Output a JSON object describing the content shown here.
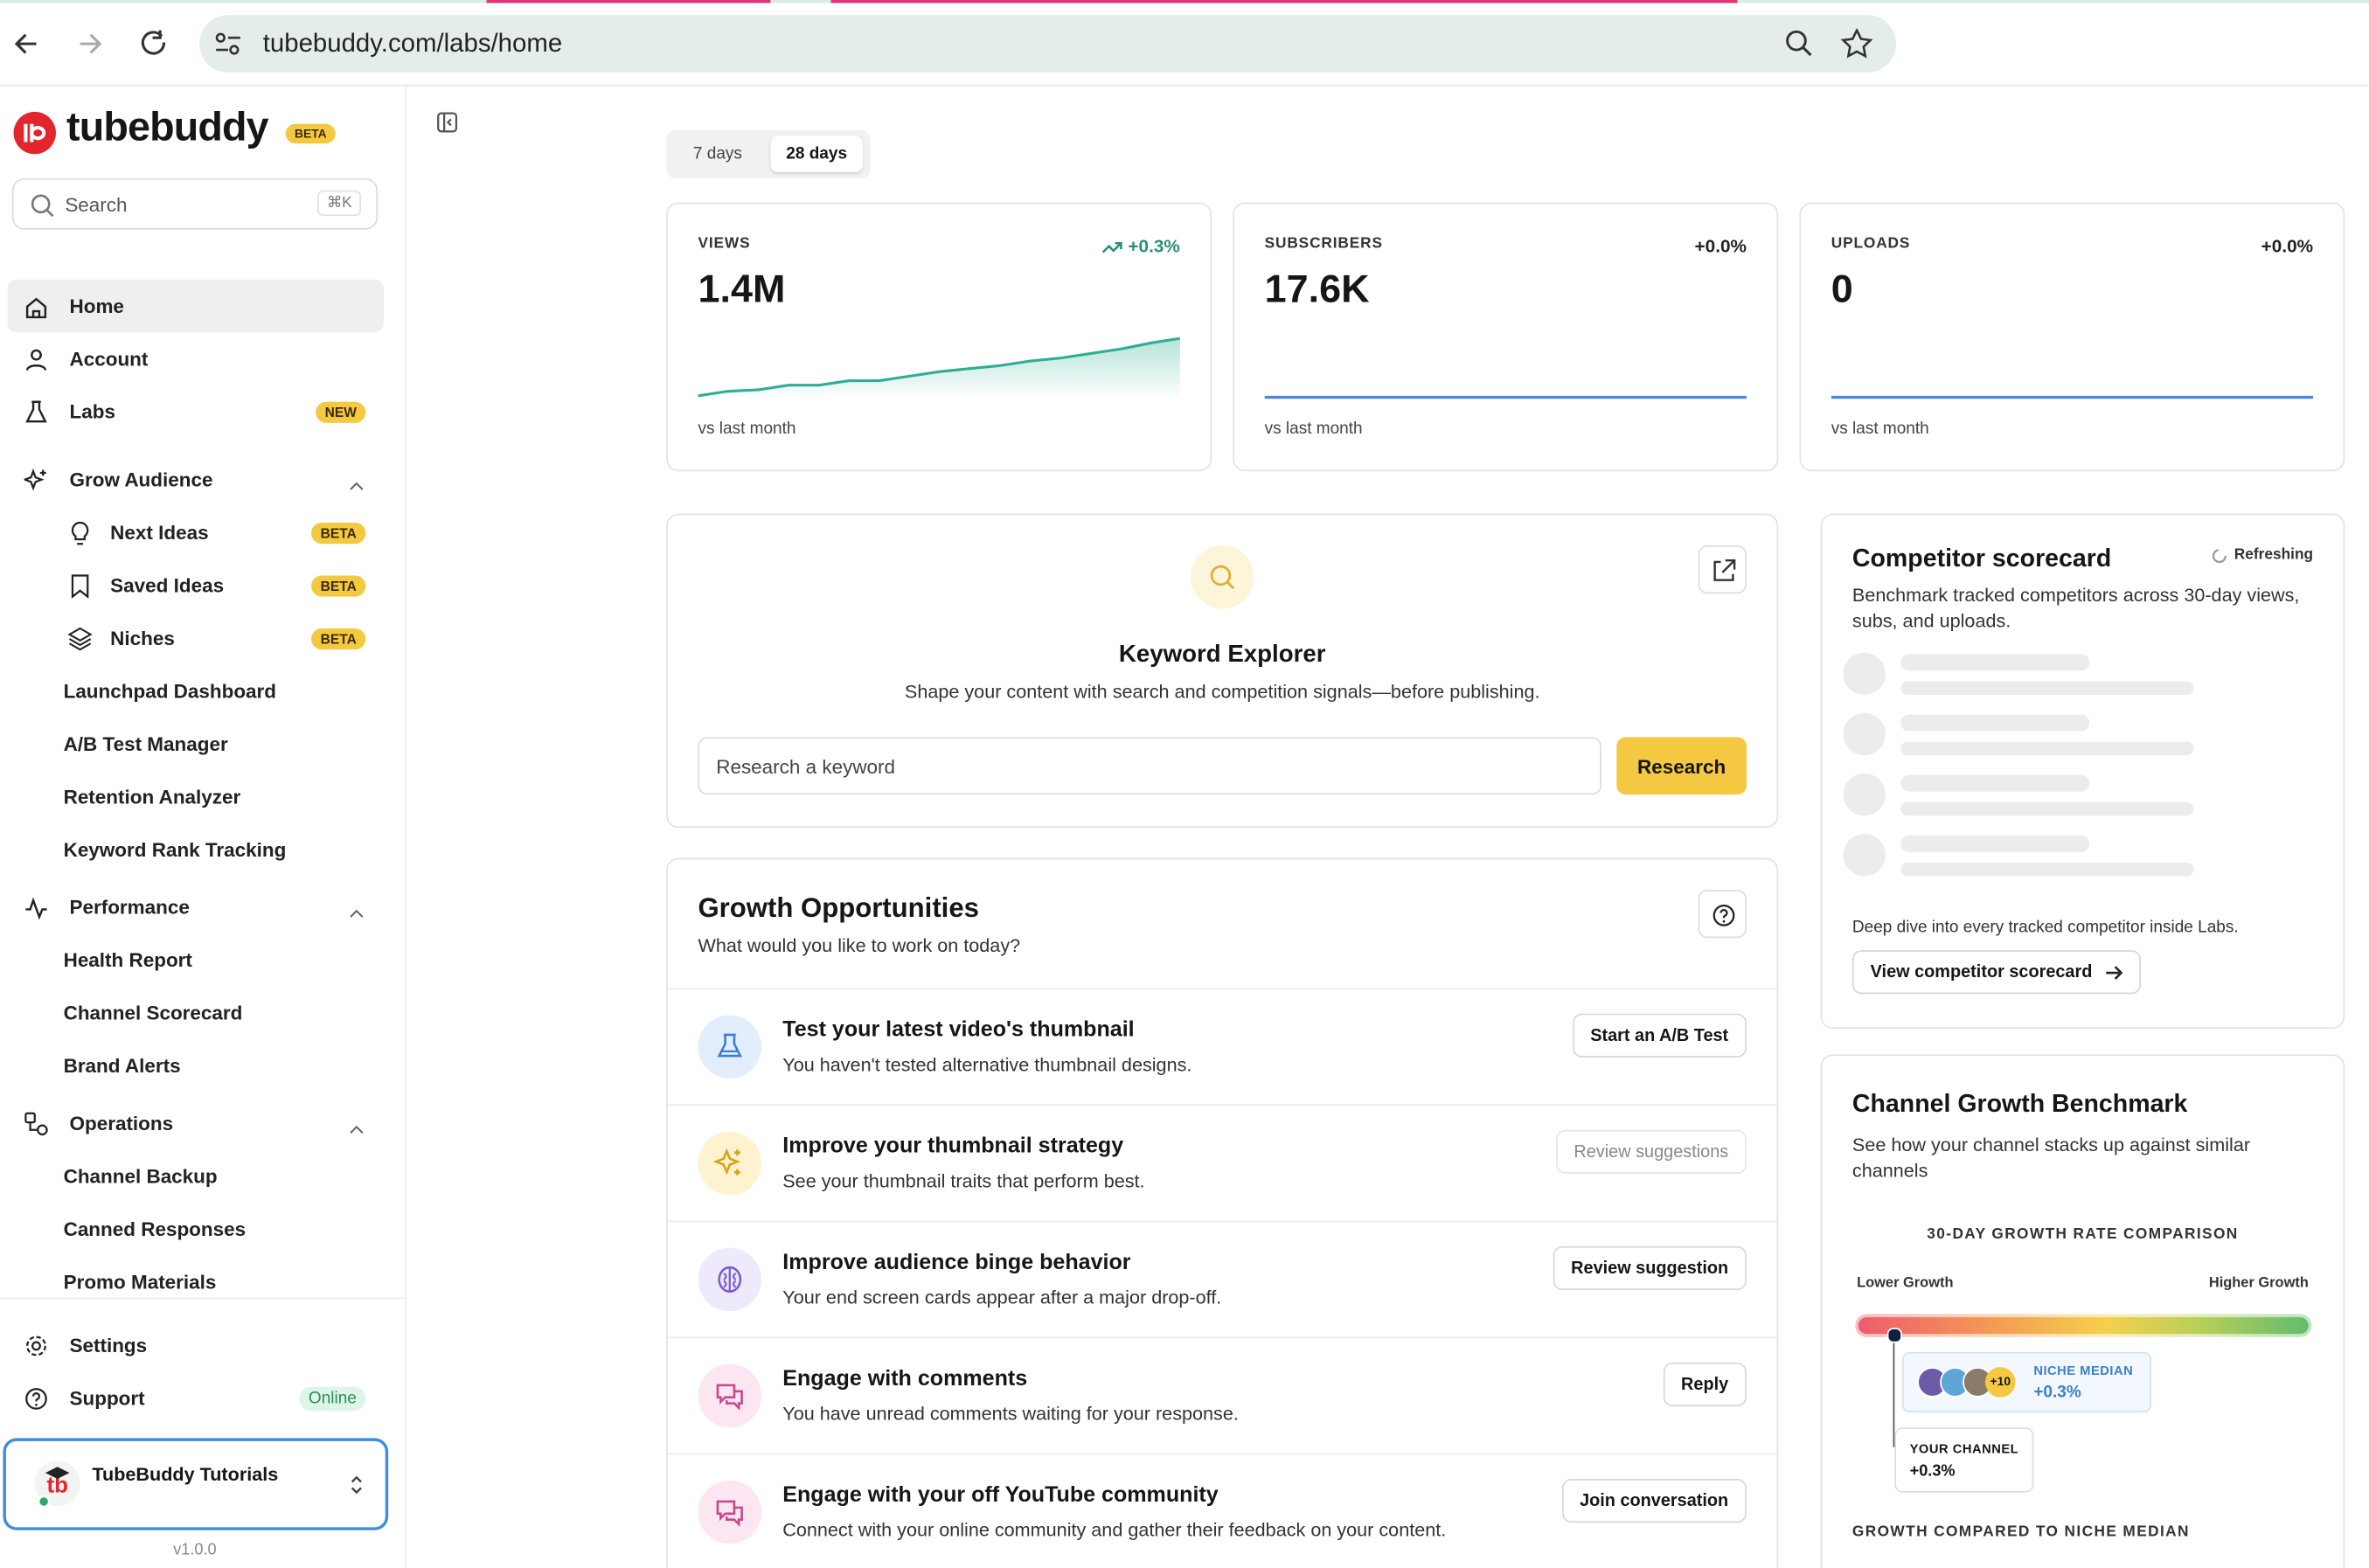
{
  "browser": {
    "url": "tubebuddy.com/labs/home"
  },
  "sidebar": {
    "brand": "tubebuddy",
    "brand_badge": "BETA",
    "search": {
      "placeholder": "Search",
      "shortcut": "⌘K"
    },
    "nav": [
      {
        "label": "Home"
      },
      {
        "label": "Account"
      },
      {
        "label": "Labs",
        "badge": "NEW"
      }
    ],
    "sections": [
      {
        "title": "Grow Audience",
        "items": [
          {
            "label": "Next Ideas",
            "badge": "BETA"
          },
          {
            "label": "Saved Ideas",
            "badge": "BETA"
          },
          {
            "label": "Niches",
            "badge": "BETA"
          },
          {
            "label": "Launchpad Dashboard"
          },
          {
            "label": "A/B Test Manager"
          },
          {
            "label": "Retention Analyzer"
          },
          {
            "label": "Keyword Rank Tracking"
          }
        ]
      },
      {
        "title": "Performance",
        "items": [
          {
            "label": "Health Report"
          },
          {
            "label": "Channel Scorecard"
          },
          {
            "label": "Brand Alerts"
          }
        ]
      },
      {
        "title": "Operations",
        "items": [
          {
            "label": "Channel Backup"
          },
          {
            "label": "Canned Responses"
          },
          {
            "label": "Promo Materials"
          }
        ]
      }
    ],
    "footer_nav": [
      {
        "label": "Settings"
      },
      {
        "label": "Support",
        "badge": "Online"
      }
    ],
    "account": "TubeBuddy Tutorials",
    "version": "v1.0.0"
  },
  "main": {
    "range_tabs": [
      "7 days",
      "28 days"
    ],
    "stats": [
      {
        "label": "VIEWS",
        "value": "1.4M",
        "change": "+0.3%",
        "note": "vs last month"
      },
      {
        "label": "SUBSCRIBERS",
        "value": "17.6K",
        "change": "+0.0%",
        "note": "vs last month"
      },
      {
        "label": "UPLOADS",
        "value": "0",
        "change": "+0.0%",
        "note": "vs last month"
      }
    ],
    "keyword_explorer": {
      "title": "Keyword Explorer",
      "description": "Shape your content with search and competition signals—before publishing.",
      "placeholder": "Research a keyword",
      "button": "Research"
    },
    "growth": {
      "title": "Growth Opportunities",
      "subtitle": "What would you like to work on today?",
      "items": [
        {
          "title": "Test your latest video's thumbnail",
          "description": "You haven't tested alternative thumbnail designs.",
          "action": "Start an A/B Test"
        },
        {
          "title": "Improve your thumbnail strategy",
          "description": "See your thumbnail traits that perform best.",
          "action": "Review suggestions"
        },
        {
          "title": "Improve audience binge behavior",
          "description": "Your end screen cards appear after a major drop-off.",
          "action": "Review suggestion"
        },
        {
          "title": "Engage with comments",
          "description": "You have unread comments waiting for your response.",
          "action": "Reply"
        },
        {
          "title": "Engage with your off YouTube community",
          "description": "Connect with your online community and gather their feedback on your content.",
          "action": "Join conversation"
        }
      ]
    },
    "competitor": {
      "title": "Competitor scorecard",
      "status": "Refreshing",
      "description": "Benchmark tracked competitors across 30-day views, subs, and uploads.",
      "footer": "Deep dive into every tracked competitor inside Labs.",
      "button": "View competitor scorecard"
    },
    "benchmark": {
      "title": "Channel Growth Benchmark",
      "description": "See how your channel stacks up against similar channels",
      "chart_title": "30-DAY GROWTH RATE COMPARISON",
      "low_label": "Lower Growth",
      "high_label": "Higher Growth",
      "more_avatars": "+10",
      "niche_label": "NICHE MEDIAN",
      "niche_value": "+0.3%",
      "channel_label": "YOUR CHANNEL",
      "channel_value": "+0.3%",
      "section_title": "GROWTH COMPARED TO NICHE MEDIAN"
    }
  }
}
